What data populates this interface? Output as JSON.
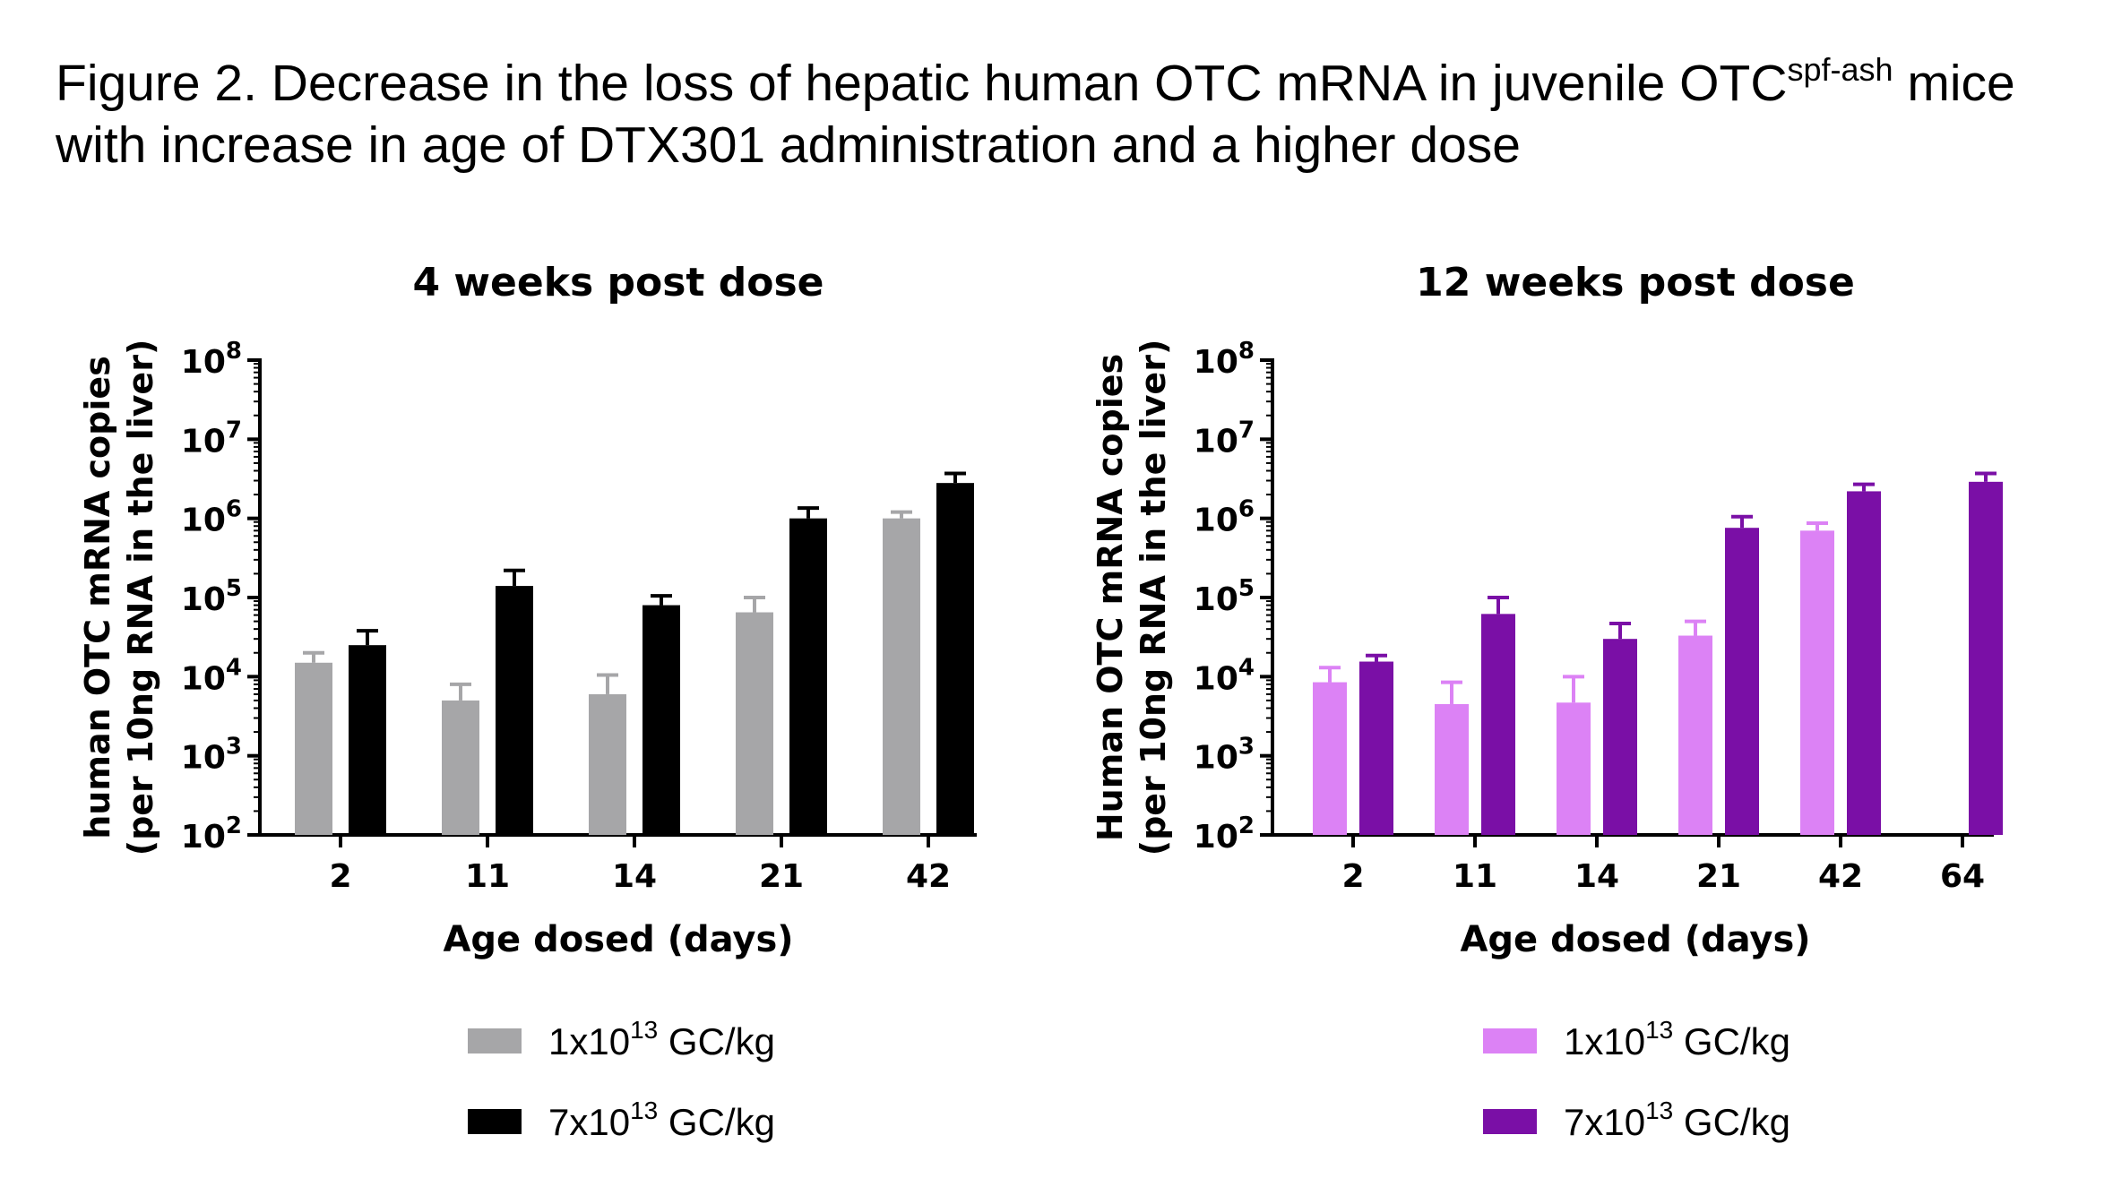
{
  "figure": {
    "title_line1": "Figure 2. Decrease in the loss of hepatic human OTC mRNA in juvenile OTC",
    "title_sup": "spf-ash",
    "title_line1_end": " mice",
    "title_line2": "with increase in age of DTX301 administration and a higher dose"
  },
  "chart_data": [
    {
      "type": "bar",
      "title": "4 weeks post dose",
      "xlabel": "Age dosed (days)",
      "ylabel_line1": "human OTC mRNA copies",
      "ylabel_line2": "(per 10ng RNA in the liver)",
      "yscale": "log",
      "ylim": [
        100,
        100000000
      ],
      "y_ticks": [
        {
          "base": "10",
          "exp": "2",
          "value": 100
        },
        {
          "base": "10",
          "exp": "3",
          "value": 1000
        },
        {
          "base": "10",
          "exp": "4",
          "value": 10000
        },
        {
          "base": "10",
          "exp": "5",
          "value": 100000
        },
        {
          "base": "10",
          "exp": "6",
          "value": 1000000
        },
        {
          "base": "10",
          "exp": "7",
          "value": 10000000
        },
        {
          "base": "10",
          "exp": "8",
          "value": 100000000
        }
      ],
      "categories": [
        "2",
        "11",
        "14",
        "21",
        "42"
      ],
      "series": [
        {
          "name": "1x10",
          "name_sup": "13",
          "name_unit": " GC/kg",
          "color": "#a6a6a8",
          "values": [
            15000,
            5000,
            6000,
            65000,
            1000000
          ],
          "error_upper": [
            20000,
            8000,
            10500,
            100000,
            1200000
          ]
        },
        {
          "name": "7x10",
          "name_sup": "13",
          "name_unit": " GC/kg",
          "color": "#000000",
          "values": [
            25000,
            140000,
            80000,
            1000000,
            2800000
          ],
          "error_upper": [
            38000,
            220000,
            105000,
            1350000,
            3700000
          ]
        }
      ],
      "legend_position": "bottom"
    },
    {
      "type": "bar",
      "title": "12 weeks post dose",
      "xlabel": "Age dosed (days)",
      "ylabel_line1": "Human OTC mRNA copies",
      "ylabel_line2": "(per 10ng RNA in the liver)",
      "yscale": "log",
      "ylim": [
        100,
        100000000
      ],
      "y_ticks": [
        {
          "base": "10",
          "exp": "2",
          "value": 100
        },
        {
          "base": "10",
          "exp": "3",
          "value": 1000
        },
        {
          "base": "10",
          "exp": "4",
          "value": 10000
        },
        {
          "base": "10",
          "exp": "5",
          "value": 100000
        },
        {
          "base": "10",
          "exp": "6",
          "value": 1000000
        },
        {
          "base": "10",
          "exp": "7",
          "value": 10000000
        },
        {
          "base": "10",
          "exp": "8",
          "value": 100000000
        }
      ],
      "categories": [
        "2",
        "11",
        "14",
        "21",
        "42",
        "64"
      ],
      "series": [
        {
          "name": "1x10",
          "name_sup": "13",
          "name_unit": " GC/kg",
          "color": "#dc82f5",
          "values": [
            8500,
            4500,
            4700,
            33000,
            700000,
            null
          ],
          "error_upper": [
            13000,
            8500,
            10000,
            50000,
            870000,
            null
          ]
        },
        {
          "name": "7x10",
          "name_sup": "13",
          "name_unit": " GC/kg",
          "color": "#7a0fa6",
          "values": [
            15500,
            62000,
            30000,
            760000,
            2200000,
            2900000
          ],
          "error_upper": [
            18500,
            100000,
            47000,
            1050000,
            2700000,
            3700000
          ]
        }
      ],
      "legend_position": "bottom"
    }
  ]
}
